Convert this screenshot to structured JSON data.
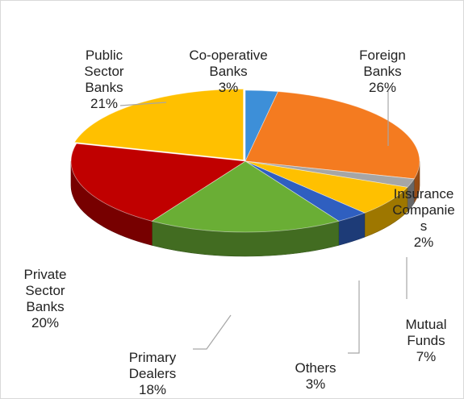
{
  "chart_data": {
    "type": "pie",
    "style": "3d-exploded",
    "title": "",
    "legend": "none",
    "slices": [
      {
        "label": "Co-operative Banks",
        "display": "Co-operative\nBanks",
        "value": 3,
        "value_label": "3%",
        "color": "#3d8fd8"
      },
      {
        "label": "Foreign Banks",
        "display": "Foreign\nBanks",
        "value": 26,
        "value_label": "26%",
        "color": "#f47b20"
      },
      {
        "label": "Insurance Companies",
        "display": "Insurance\nCompanie\ns",
        "value": 2,
        "value_label": "2%",
        "color": "#a6a6a6"
      },
      {
        "label": "Mutual Funds",
        "display": "Mutual\nFunds",
        "value": 7,
        "value_label": "7%",
        "color": "#ffc000"
      },
      {
        "label": "Others",
        "display": "Others",
        "value": 3,
        "value_label": "3%",
        "color": "#2f5fc0"
      },
      {
        "label": "Primary Dealers",
        "display": "Primary\nDealers",
        "value": 18,
        "value_label": "18%",
        "color": "#6aae35"
      },
      {
        "label": "Private Sector Banks",
        "display": "Private\nSector\nBanks",
        "value": 20,
        "value_label": "20%",
        "color": "#c00000"
      },
      {
        "label": "Public Sector Banks",
        "display": "Public\nSector\nBanks",
        "value": 21,
        "value_label": "21%",
        "color": "#ffc000"
      }
    ]
  }
}
